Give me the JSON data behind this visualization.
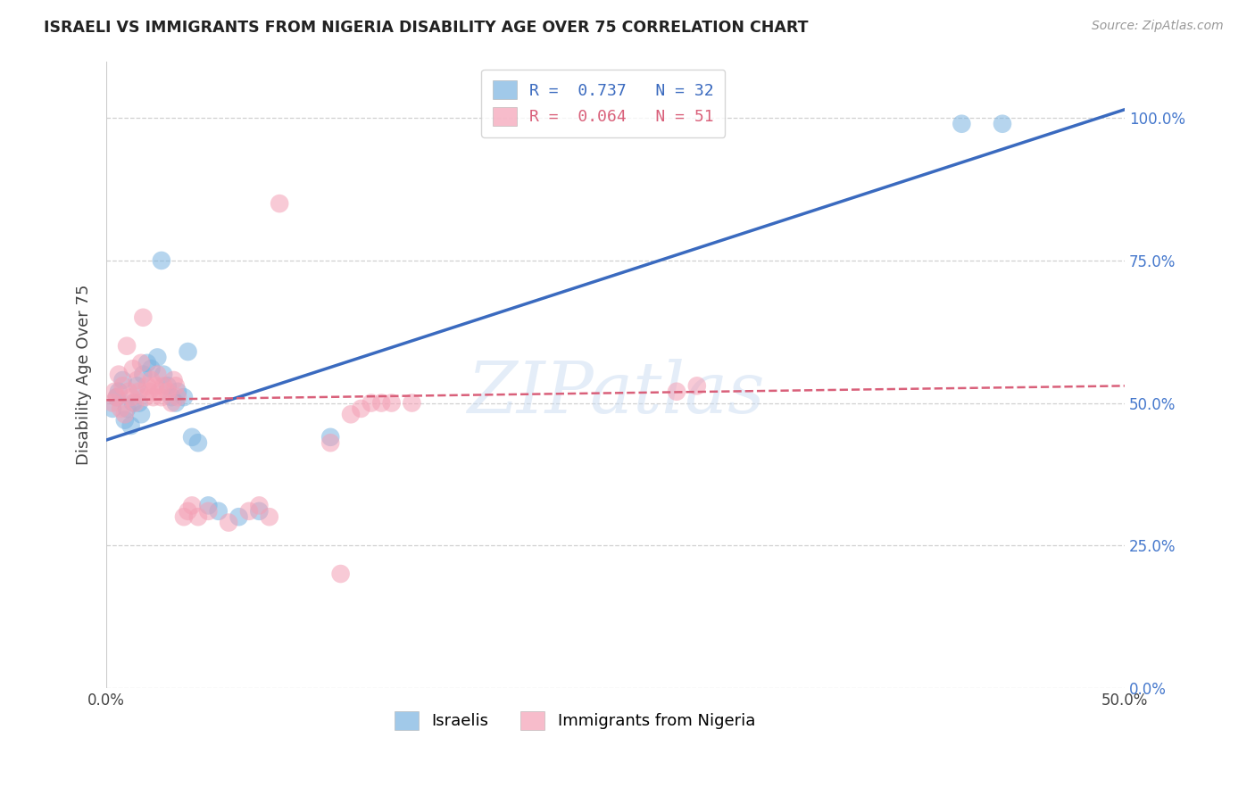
{
  "title": "ISRAELI VS IMMIGRANTS FROM NIGERIA DISABILITY AGE OVER 75 CORRELATION CHART",
  "source": "Source: ZipAtlas.com",
  "ylabel": "Disability Age Over 75",
  "ytick_labels": [
    "0.0%",
    "25.0%",
    "50.0%",
    "75.0%",
    "100.0%"
  ],
  "ytick_values": [
    0.0,
    0.25,
    0.5,
    0.75,
    1.0
  ],
  "xtick_values": [
    0.0,
    0.1,
    0.2,
    0.3,
    0.4,
    0.5
  ],
  "xtick_labels": [
    "0.0%",
    "",
    "",
    "",
    "",
    "50.0%"
  ],
  "xlim": [
    0.0,
    0.5
  ],
  "ylim": [
    0.0,
    1.1
  ],
  "watermark": "ZIPatlas",
  "legend_r_labels": [
    "R =  0.737   N = 32",
    "R =  0.064   N = 51"
  ],
  "legend_labels_bottom": [
    "Israelis",
    "Immigrants from Nigeria"
  ],
  "israelis_color": "#7ab3e0",
  "nigeria_color": "#f4a0b5",
  "israelis_line_color": "#3a6abf",
  "nigeria_line_color": "#d9607a",
  "israelis_scatter": [
    [
      0.003,
      0.49
    ],
    [
      0.005,
      0.51
    ],
    [
      0.006,
      0.52
    ],
    [
      0.008,
      0.54
    ],
    [
      0.009,
      0.47
    ],
    [
      0.01,
      0.49
    ],
    [
      0.012,
      0.46
    ],
    [
      0.013,
      0.5
    ],
    [
      0.015,
      0.53
    ],
    [
      0.016,
      0.5
    ],
    [
      0.017,
      0.48
    ],
    [
      0.018,
      0.55
    ],
    [
      0.02,
      0.57
    ],
    [
      0.022,
      0.56
    ],
    [
      0.025,
      0.58
    ],
    [
      0.027,
      0.75
    ],
    [
      0.028,
      0.55
    ],
    [
      0.03,
      0.53
    ],
    [
      0.032,
      0.51
    ],
    [
      0.034,
      0.5
    ],
    [
      0.035,
      0.52
    ],
    [
      0.038,
      0.51
    ],
    [
      0.04,
      0.59
    ],
    [
      0.042,
      0.44
    ],
    [
      0.045,
      0.43
    ],
    [
      0.05,
      0.32
    ],
    [
      0.055,
      0.31
    ],
    [
      0.065,
      0.3
    ],
    [
      0.075,
      0.31
    ],
    [
      0.11,
      0.44
    ],
    [
      0.42,
      0.99
    ],
    [
      0.44,
      0.99
    ]
  ],
  "nigeria_scatter": [
    [
      0.003,
      0.5
    ],
    [
      0.004,
      0.52
    ],
    [
      0.005,
      0.51
    ],
    [
      0.006,
      0.55
    ],
    [
      0.007,
      0.49
    ],
    [
      0.008,
      0.53
    ],
    [
      0.009,
      0.48
    ],
    [
      0.01,
      0.6
    ],
    [
      0.011,
      0.52
    ],
    [
      0.012,
      0.51
    ],
    [
      0.013,
      0.56
    ],
    [
      0.014,
      0.5
    ],
    [
      0.015,
      0.54
    ],
    [
      0.016,
      0.52
    ],
    [
      0.017,
      0.57
    ],
    [
      0.018,
      0.65
    ],
    [
      0.019,
      0.51
    ],
    [
      0.02,
      0.53
    ],
    [
      0.021,
      0.52
    ],
    [
      0.022,
      0.54
    ],
    [
      0.023,
      0.51
    ],
    [
      0.024,
      0.53
    ],
    [
      0.025,
      0.55
    ],
    [
      0.026,
      0.52
    ],
    [
      0.027,
      0.51
    ],
    [
      0.028,
      0.53
    ],
    [
      0.03,
      0.52
    ],
    [
      0.032,
      0.5
    ],
    [
      0.033,
      0.54
    ],
    [
      0.034,
      0.53
    ],
    [
      0.035,
      0.51
    ],
    [
      0.038,
      0.3
    ],
    [
      0.04,
      0.31
    ],
    [
      0.042,
      0.32
    ],
    [
      0.045,
      0.3
    ],
    [
      0.05,
      0.31
    ],
    [
      0.06,
      0.29
    ],
    [
      0.07,
      0.31
    ],
    [
      0.075,
      0.32
    ],
    [
      0.08,
      0.3
    ],
    [
      0.085,
      0.85
    ],
    [
      0.11,
      0.43
    ],
    [
      0.115,
      0.2
    ],
    [
      0.12,
      0.48
    ],
    [
      0.125,
      0.49
    ],
    [
      0.13,
      0.5
    ],
    [
      0.135,
      0.5
    ],
    [
      0.14,
      0.5
    ],
    [
      0.15,
      0.5
    ],
    [
      0.28,
      0.52
    ],
    [
      0.29,
      0.53
    ]
  ],
  "israelis_line": {
    "x0": 0.0,
    "y0": 0.435,
    "x1": 0.5,
    "y1": 1.015
  },
  "nigeria_line": {
    "x0": 0.0,
    "y0": 0.505,
    "x1": 0.5,
    "y1": 0.53
  },
  "bg_color": "#ffffff",
  "grid_color": "#d0d0d0",
  "title_fontsize": 12.5,
  "source_fontsize": 10,
  "tick_fontsize": 12,
  "ylabel_fontsize": 13,
  "right_tick_color": "#4477cc"
}
